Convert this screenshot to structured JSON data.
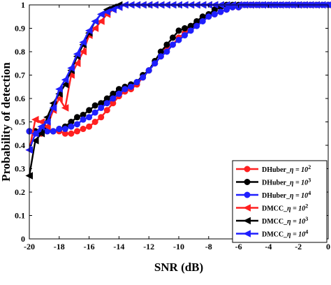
{
  "chart_data": {
    "type": "line",
    "title": "",
    "xlabel": "SNR (dB)",
    "ylabel": "Probability of detection",
    "xlim": [
      -20,
      0
    ],
    "ylim": [
      0,
      1
    ],
    "xticks": [
      -20,
      -18,
      -16,
      -14,
      -12,
      -10,
      -8,
      -6,
      -4,
      -2,
      0
    ],
    "yticks": [
      0,
      0.1,
      0.2,
      0.3,
      0.4,
      0.5,
      0.6,
      0.7,
      0.8,
      0.9,
      1
    ],
    "grid": false,
    "legend_position": "bottom-right",
    "x": [
      -20,
      -19.6,
      -19.2,
      -18.8,
      -18.4,
      -18,
      -17.6,
      -17.2,
      -16.8,
      -16.4,
      -16,
      -15.6,
      -15.2,
      -14.8,
      -14.4,
      -14,
      -13.6,
      -13.2,
      -12.8,
      -12.4,
      -12,
      -11.6,
      -11.2,
      -10.8,
      -10.4,
      -10,
      -9.6,
      -9.2,
      -8.8,
      -8.4,
      -8,
      -7.6,
      -7.2,
      -6.8,
      -6.4,
      -6,
      -5.6,
      -5.2,
      -4.8,
      -4.4,
      -4,
      -3.6,
      -3.2,
      -2.8,
      -2.4,
      -2,
      -1.6,
      -1.2,
      -0.8,
      -0.4,
      0
    ],
    "series": [
      {
        "name": "DHuber_",
        "name_sub": "η = 10",
        "name_exp": "2",
        "color": "#ff2020",
        "marker": "circle",
        "values": [
          0.46,
          0.46,
          0.45,
          0.46,
          0.46,
          0.46,
          0.45,
          0.45,
          0.46,
          0.47,
          0.48,
          0.5,
          0.52,
          0.55,
          0.58,
          0.61,
          0.63,
          0.64,
          0.66,
          0.69,
          0.72,
          0.75,
          0.78,
          0.81,
          0.83,
          0.86,
          0.88,
          0.9,
          0.92,
          0.94,
          0.95,
          0.96,
          0.97,
          0.98,
          0.99,
          0.99,
          1,
          1,
          1,
          1,
          1,
          1,
          1,
          1,
          1,
          1,
          1,
          1,
          1,
          1,
          1
        ]
      },
      {
        "name": "DHuber_",
        "name_sub": "η = 10",
        "name_exp": "3",
        "color": "#000000",
        "marker": "circle",
        "values": [
          0.46,
          0.46,
          0.46,
          0.47,
          0.46,
          0.47,
          0.48,
          0.5,
          0.52,
          0.53,
          0.55,
          0.57,
          0.58,
          0.6,
          0.62,
          0.64,
          0.65,
          0.66,
          0.67,
          0.7,
          0.72,
          0.76,
          0.8,
          0.83,
          0.86,
          0.89,
          0.9,
          0.91,
          0.93,
          0.95,
          0.96,
          0.98,
          0.99,
          1,
          1,
          1,
          1,
          1,
          1,
          1,
          1,
          1,
          1,
          1,
          1,
          1,
          1,
          1,
          1,
          1,
          1
        ]
      },
      {
        "name": "DHuber_",
        "name_sub": "η = 10",
        "name_exp": "4",
        "color": "#1f1fff",
        "marker": "circle",
        "values": [
          0.46,
          0.45,
          0.46,
          0.46,
          0.46,
          0.47,
          0.47,
          0.48,
          0.49,
          0.51,
          0.52,
          0.54,
          0.56,
          0.58,
          0.6,
          0.62,
          0.64,
          0.65,
          0.67,
          0.69,
          0.72,
          0.75,
          0.78,
          0.8,
          0.83,
          0.85,
          0.87,
          0.89,
          0.91,
          0.93,
          0.95,
          0.96,
          0.97,
          0.98,
          0.99,
          0.99,
          1,
          1,
          1,
          1,
          1,
          1,
          1,
          1,
          1,
          1,
          1,
          1,
          1,
          1,
          1
        ]
      },
      {
        "name": "DMCC_",
        "name_sub": "η = 10",
        "name_exp": "2",
        "color": "#ff2020",
        "marker": "triangle-left",
        "values": [
          0.38,
          0.51,
          0.5,
          0.48,
          0.55,
          0.6,
          0.56,
          0.7,
          0.75,
          0.8,
          0.87,
          0.9,
          0.93,
          0.96,
          0.98,
          0.99,
          1,
          1,
          1,
          1,
          1,
          1,
          1,
          1,
          1,
          1,
          1,
          1,
          1,
          1,
          1,
          1,
          1,
          1,
          1,
          1,
          1,
          1,
          1,
          1,
          1,
          1,
          1,
          1,
          1,
          1,
          1,
          1,
          1,
          1,
          1
        ]
      },
      {
        "name": "DMCC_",
        "name_sub": "η = 10",
        "name_exp": "3",
        "color": "#000000",
        "marker": "triangle-left",
        "values": [
          0.27,
          0.42,
          0.45,
          0.52,
          0.58,
          0.62,
          0.66,
          0.72,
          0.78,
          0.83,
          0.88,
          0.93,
          0.96,
          0.98,
          0.99,
          1,
          1,
          1,
          1,
          1,
          1,
          1,
          1,
          1,
          1,
          1,
          1,
          1,
          1,
          1,
          1,
          1,
          1,
          1,
          1,
          1,
          1,
          1,
          1,
          1,
          1,
          1,
          1,
          1,
          1,
          1,
          1,
          1,
          1,
          1,
          1
        ]
      },
      {
        "name": "DMCC_",
        "name_sub": "η = 10",
        "name_exp": "4",
        "color": "#1f1fff",
        "marker": "triangle-left",
        "values": [
          0.38,
          0.45,
          0.48,
          0.5,
          0.56,
          0.64,
          0.68,
          0.73,
          0.79,
          0.84,
          0.89,
          0.93,
          0.96,
          0.97,
          0.98,
          0.99,
          1,
          1,
          1,
          1,
          1,
          1,
          1,
          1,
          1,
          1,
          1,
          1,
          1,
          1,
          1,
          1,
          1,
          1,
          1,
          1,
          1,
          1,
          1,
          1,
          1,
          1,
          1,
          1,
          1,
          1,
          1,
          1,
          1,
          1,
          1
        ]
      }
    ]
  }
}
